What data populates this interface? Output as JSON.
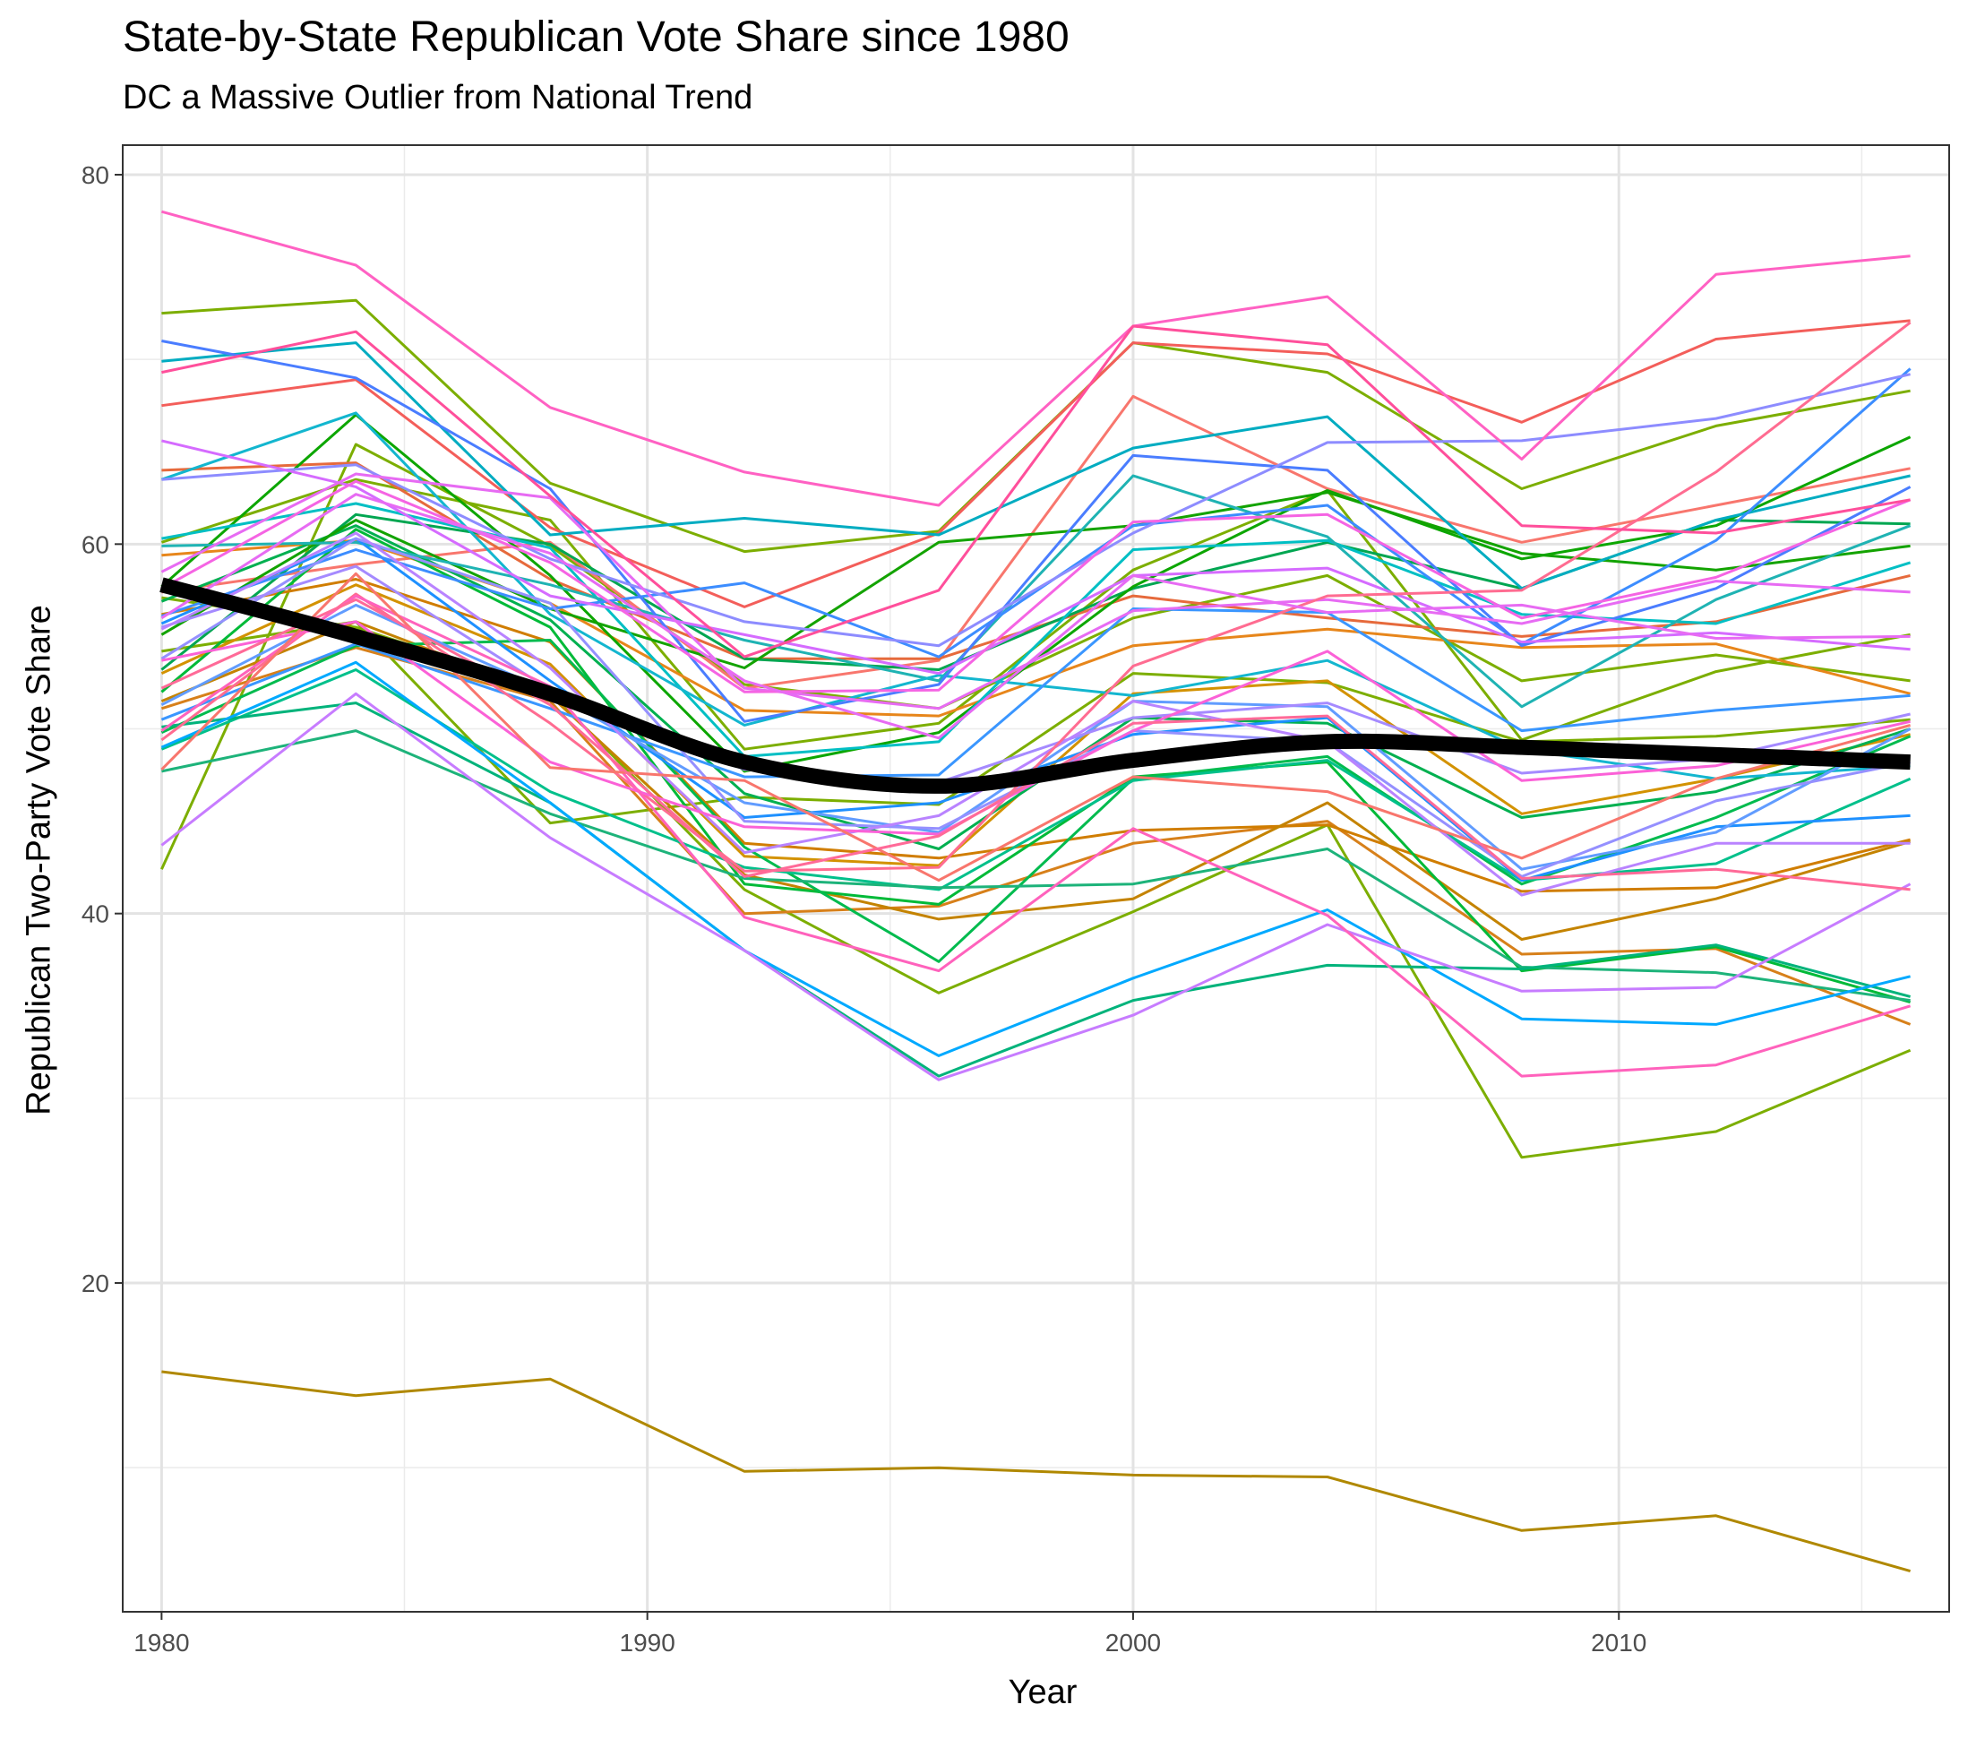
{
  "chart_data": {
    "type": "line",
    "title": "State-by-State Republican Vote Share since 1980",
    "subtitle": "DC a Massive Outlier from National Trend",
    "xlabel": "Year",
    "ylabel": "Republican Two-Party Vote Share",
    "x": [
      1980,
      1984,
      1988,
      1992,
      1996,
      2000,
      2004,
      2008,
      2012,
      2016
    ],
    "xlim": [
      1979.2,
      2016.8
    ],
    "ylim": [
      2.2,
      81.6
    ],
    "x_ticks": [
      "1980",
      "1990",
      "2000",
      "2010"
    ],
    "y_ticks": [
      "20",
      "40",
      "60",
      "80"
    ],
    "grid": true,
    "legend": "none",
    "series": [
      {
        "color": "#b08800",
        "values": [
          15.2,
          13.9,
          14.8,
          9.8,
          10.0,
          9.6,
          9.5,
          6.6,
          7.4,
          4.4
        ]
      },
      {
        "color": "#7cae00",
        "values": [
          42.4,
          65.4,
          59.9,
          52.4,
          51.1,
          56.0,
          58.3,
          52.6,
          54.0,
          52.6
        ]
      },
      {
        "color": "#7cae00",
        "values": [
          72.5,
          73.2,
          63.3,
          59.6,
          60.7,
          70.9,
          69.3,
          63.0,
          66.4,
          68.3
        ]
      },
      {
        "color": "#7cae00",
        "values": [
          54.2,
          55.8,
          44.9,
          46.3,
          45.9,
          53.0,
          52.5,
          49.3,
          49.6,
          50.5
        ]
      },
      {
        "color": "#7cae00",
        "values": [
          57.1,
          55.5,
          52.0,
          41.3,
          35.7,
          40.1,
          44.8,
          26.8,
          28.2,
          32.6
        ]
      },
      {
        "color": "#7cae00",
        "values": [
          60.1,
          63.5,
          61.3,
          48.9,
          50.3,
          58.6,
          62.9,
          49.4,
          53.1,
          55.1
        ]
      },
      {
        "color": "#f8766d",
        "values": [
          57.4,
          58.9,
          60.1,
          52.2,
          53.7,
          68.0,
          63.0,
          60.1,
          62.1,
          64.1
        ]
      },
      {
        "color": "#f35e5a",
        "values": [
          67.5,
          68.9,
          60.9,
          56.6,
          60.6,
          70.9,
          70.3,
          66.6,
          71.1,
          72.1
        ]
      },
      {
        "color": "#e7861b",
        "values": [
          59.4,
          60.2,
          56.8,
          51.0,
          50.7,
          54.5,
          55.4,
          54.4,
          54.6,
          51.9
        ]
      },
      {
        "color": "#e66a3c",
        "values": [
          64.0,
          64.4,
          58.1,
          53.8,
          53.8,
          57.2,
          56.0,
          55.0,
          55.8,
          58.3
        ]
      },
      {
        "color": "#d7801a",
        "values": [
          51.1,
          54.4,
          51.5,
          40.0,
          40.4,
          43.8,
          45.0,
          37.8,
          38.1,
          34.0
        ]
      },
      {
        "color": "#d07d00",
        "values": [
          56.2,
          58.1,
          54.7,
          43.8,
          43.0,
          44.5,
          44.8,
          41.2,
          41.4,
          44.0
        ]
      },
      {
        "color": "#c48300",
        "values": [
          51.5,
          55.8,
          51.8,
          42.1,
          39.7,
          40.8,
          46.0,
          38.6,
          40.8,
          43.9
        ]
      },
      {
        "color": "#d39200",
        "values": [
          53.0,
          57.8,
          53.5,
          43.1,
          42.6,
          51.9,
          52.6,
          45.4,
          47.3,
          49.7
        ]
      },
      {
        "color": "#00ba38",
        "values": [
          52.0,
          60.8,
          55.5,
          41.6,
          40.5,
          47.4,
          48.2,
          36.9,
          38.2,
          35.2
        ]
      },
      {
        "color": "#00a651",
        "values": [
          53.2,
          61.6,
          60.0,
          53.8,
          53.2,
          57.6,
          60.1,
          57.6,
          61.3,
          61.1
        ]
      },
      {
        "color": "#00b050",
        "values": [
          56.9,
          61.0,
          55.9,
          46.5,
          43.5,
          50.6,
          50.3,
          45.2,
          46.6,
          50.0
        ]
      },
      {
        "color": "#0ca600",
        "values": [
          57.7,
          67.0,
          58.3,
          47.7,
          49.8,
          57.7,
          62.9,
          59.2,
          61.0,
          65.8
        ]
      },
      {
        "color": "#13a300",
        "values": [
          55.1,
          61.3,
          56.5,
          53.3,
          60.1,
          61.0,
          62.8,
          59.5,
          58.6,
          59.9
        ]
      },
      {
        "color": "#00bb4e",
        "values": [
          49.8,
          54.5,
          54.8,
          43.6,
          37.4,
          47.3,
          48.5,
          41.6,
          45.2,
          49.6
        ]
      },
      {
        "color": "#00c08b",
        "values": [
          48.9,
          53.2,
          46.6,
          42.5,
          41.3,
          47.2,
          48.3,
          41.8,
          42.7,
          47.3
        ]
      },
      {
        "color": "#1db37a",
        "values": [
          47.7,
          49.9,
          45.4,
          41.9,
          41.4,
          41.6,
          43.5,
          37.1,
          36.8,
          35.3
        ]
      },
      {
        "color": "#00b37b",
        "values": [
          50.1,
          51.4,
          46.0,
          38.0,
          31.2,
          35.3,
          37.2,
          37.0,
          38.3,
          35.5
        ]
      },
      {
        "color": "#00bfc4",
        "values": [
          60.3,
          62.2,
          59.8,
          48.5,
          49.3,
          59.7,
          60.2,
          56.2,
          55.7,
          59.0
        ]
      },
      {
        "color": "#1fb3b3",
        "values": [
          59.9,
          60.1,
          57.8,
          54.8,
          52.6,
          63.7,
          60.4,
          51.2,
          57.0,
          61.0
        ]
      },
      {
        "color": "#00acc1",
        "values": [
          69.9,
          70.9,
          60.5,
          61.4,
          60.5,
          65.2,
          66.9,
          57.6,
          61.3,
          63.7
        ]
      },
      {
        "color": "#13b6cf",
        "values": [
          63.5,
          67.1,
          56.2,
          50.2,
          52.9,
          51.8,
          53.7,
          48.9,
          47.3,
          48.0
        ]
      },
      {
        "color": "#00a9ff",
        "values": [
          49.0,
          53.6,
          46.0,
          38.0,
          32.3,
          36.5,
          40.2,
          34.3,
          34.0,
          36.6
        ]
      },
      {
        "color": "#1e90ff",
        "values": [
          55.7,
          60.3,
          52.6,
          45.2,
          46.0,
          49.7,
          50.6,
          41.8,
          44.7,
          45.3
        ]
      },
      {
        "color": "#3c8dff",
        "values": [
          56.1,
          59.7,
          56.5,
          57.9,
          53.9,
          61.0,
          62.1,
          54.6,
          60.2,
          69.5
        ]
      },
      {
        "color": "#3a96ff",
        "values": [
          50.5,
          54.6,
          51.1,
          47.4,
          47.5,
          56.5,
          56.3,
          49.9,
          51.0,
          51.8
        ]
      },
      {
        "color": "#4a7dff",
        "values": [
          71.0,
          69.0,
          63.0,
          50.4,
          52.4,
          64.8,
          64.0,
          54.5,
          57.6,
          63.1
        ]
      },
      {
        "color": "#619cff",
        "values": [
          51.3,
          56.7,
          52.0,
          46.0,
          44.4,
          51.5,
          51.2,
          42.4,
          44.4,
          50.0
        ]
      },
      {
        "color": "#8d8cff",
        "values": [
          63.5,
          64.3,
          59.2,
          55.8,
          54.5,
          60.6,
          65.5,
          65.6,
          66.8,
          69.2
        ]
      },
      {
        "color": "#9590ff",
        "values": [
          53.8,
          60.3,
          56.8,
          45.0,
          44.6,
          49.9,
          49.3,
          42.0,
          46.1,
          48.2
        ]
      },
      {
        "color": "#a58aff",
        "values": [
          55.5,
          58.8,
          52.1,
          47.8,
          47.1,
          50.6,
          51.4,
          47.6,
          48.4,
          50.8
        ]
      },
      {
        "color": "#c77cff",
        "values": [
          43.7,
          51.9,
          44.1,
          38.0,
          31.0,
          34.5,
          39.4,
          35.8,
          36.0,
          41.6
        ]
      },
      {
        "color": "#b983ff",
        "values": [
          55.4,
          60.6,
          53.3,
          43.3,
          45.3,
          51.5,
          49.3,
          41.0,
          43.8,
          43.8
        ]
      },
      {
        "color": "#d56bff",
        "values": [
          65.6,
          63.1,
          57.2,
          55.1,
          53.0,
          58.3,
          58.7,
          54.7,
          55.2,
          54.3
        ]
      },
      {
        "color": "#e76bf3",
        "values": [
          58.5,
          63.8,
          62.5,
          52.2,
          51.1,
          56.4,
          57.0,
          55.7,
          58.0,
          57.4
        ]
      },
      {
        "color": "#ff61c3",
        "values": [
          78.0,
          75.1,
          67.4,
          63.9,
          62.1,
          71.8,
          73.4,
          64.6,
          74.6,
          75.6
        ]
      },
      {
        "color": "#f564e3",
        "values": [
          57.6,
          63.4,
          59.0,
          52.0,
          52.1,
          61.2,
          61.6,
          56.0,
          58.2,
          62.4
        ]
      },
      {
        "color": "#ff6c91",
        "values": [
          49.4,
          57.3,
          50.3,
          42.3,
          42.5,
          53.4,
          57.2,
          57.5,
          63.9,
          72.0
        ]
      },
      {
        "color": "#ff4f9b",
        "values": [
          69.3,
          71.5,
          62.6,
          53.9,
          57.5,
          71.8,
          70.8,
          61.0,
          60.6,
          62.4
        ]
      },
      {
        "color": "#fb61d7",
        "values": [
          53.7,
          55.8,
          48.2,
          44.7,
          44.3,
          49.9,
          54.2,
          47.2,
          48.0,
          50.4
        ]
      },
      {
        "color": "#ff62bc",
        "values": [
          49.9,
          57.2,
          52.3,
          39.8,
          36.9,
          44.6,
          39.9,
          31.2,
          31.8,
          35.0
        ]
      },
      {
        "color": "#f8766d",
        "values": [
          47.8,
          58.4,
          47.9,
          47.2,
          41.8,
          47.4,
          46.6,
          43.0,
          47.3,
          50.2
        ]
      },
      {
        "color": "#ff6a98",
        "values": [
          52.2,
          57.0,
          51.3,
          42.0,
          44.2,
          50.3,
          50.7,
          41.9,
          42.4,
          41.3
        ]
      },
      {
        "color": "#e76bf3",
        "values": [
          56.0,
          62.7,
          59.5,
          52.6,
          49.5,
          58.3,
          56.3,
          56.7,
          54.9,
          55.0
        ]
      }
    ],
    "trend": {
      "color": "#000000",
      "values": [
        57.8,
        55.0,
        51.9,
        48.2,
        46.9,
        48.3,
        49.3,
        49.0,
        48.6,
        48.2
      ]
    }
  }
}
